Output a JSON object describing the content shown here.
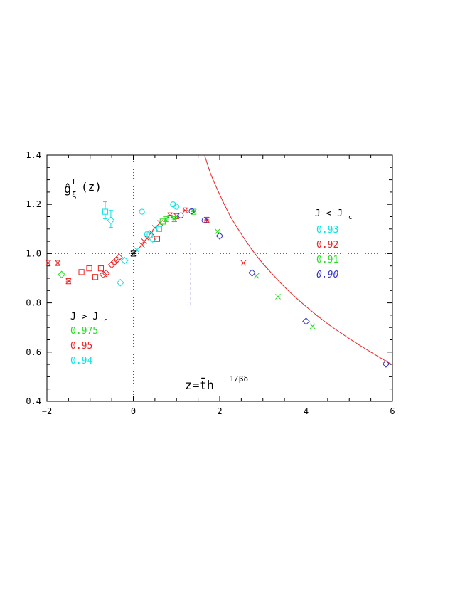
{
  "chart_data": {
    "type": "scatter",
    "title": "",
    "ylabel_main": "ĝ",
    "ylabel_sup": "L",
    "ylabel_sub": "ξ",
    "ylabel_args": "(z)",
    "xlabel_main": "z=t̄h",
    "xlabel_sup": "−1/βδ",
    "xlim": [
      -2,
      6
    ],
    "ylim": [
      0.4,
      1.4
    ],
    "x_ticks": [
      -2,
      0,
      2,
      4,
      6
    ],
    "x_tick_labels": [
      "−2",
      "0",
      "2",
      "4",
      "6"
    ],
    "y_ticks": [
      0.4,
      0.6,
      0.8,
      1.0,
      1.2,
      1.4
    ],
    "y_tick_labels": [
      "0.4",
      "0.6",
      "0.8",
      "1.0",
      "1.2",
      "1.4"
    ],
    "reference_lines": {
      "x": 0,
      "y": 1.0,
      "style": "dotted"
    },
    "dashed_marker": {
      "x": 1.33,
      "y_from": 0.79,
      "y_to": 1.05,
      "color": "#4444cc"
    },
    "colors": {
      "cyan": "#00e5e5",
      "red": "#ee2222",
      "green": "#22dd22",
      "blue": "#3333cc",
      "black": "#000000"
    },
    "legend_low": {
      "title_main": "J > J",
      "title_sub": "c",
      "entries": [
        {
          "label": "0.975",
          "color": "#22dd22"
        },
        {
          "label": "0.95",
          "color": "#ee2222"
        },
        {
          "label": "0.94",
          "color": "#00e5e5"
        }
      ]
    },
    "legend_high": {
      "title_main": "J < J",
      "title_sub": "c",
      "entries": [
        {
          "label": "0.93",
          "color": "#00e5e5"
        },
        {
          "label": "0.92",
          "color": "#ee2222"
        },
        {
          "label": "0.91",
          "color": "#22dd22"
        },
        {
          "label": "0.90",
          "color": "#3333cc"
        }
      ]
    },
    "curve": {
      "color": "#ee2222",
      "x_from": 1.65,
      "x_to": 6.0,
      "points": [
        [
          1.65,
          1.4
        ],
        [
          1.8,
          1.32
        ],
        [
          2.0,
          1.24
        ],
        [
          2.25,
          1.15
        ],
        [
          2.5,
          1.08
        ],
        [
          2.75,
          1.015
        ],
        [
          3.0,
          0.96
        ],
        [
          3.5,
          0.865
        ],
        [
          4.0,
          0.785
        ],
        [
          4.5,
          0.715
        ],
        [
          5.0,
          0.655
        ],
        [
          5.5,
          0.6
        ],
        [
          6.0,
          0.548
        ]
      ]
    },
    "series": [
      {
        "color": "#ee2222",
        "marker": "hourglass",
        "points": [
          [
            -1.97,
            0.962
          ],
          [
            -1.75,
            0.962
          ],
          [
            -1.5,
            0.888
          ],
          [
            0.85,
            1.155
          ],
          [
            1.0,
            1.152
          ],
          [
            1.2,
            1.175
          ],
          [
            1.7,
            1.137
          ]
        ]
      },
      {
        "color": "#22dd22",
        "marker": "hourglass",
        "points": [
          [
            0.75,
            1.14
          ],
          [
            0.95,
            1.14
          ],
          [
            1.4,
            1.17
          ]
        ]
      },
      {
        "color": "#ee2222",
        "marker": "square",
        "points": [
          [
            -1.2,
            0.925
          ],
          [
            -1.02,
            0.94
          ],
          [
            -0.88,
            0.905
          ],
          [
            -0.75,
            0.94
          ],
          [
            0.55,
            1.06
          ]
        ]
      },
      {
        "color": "#ee2222",
        "marker": "diamond",
        "points": [
          [
            -0.7,
            0.915
          ],
          [
            -0.63,
            0.92
          ],
          [
            -0.5,
            0.955
          ],
          [
            -0.44,
            0.965
          ],
          [
            -0.38,
            0.975
          ],
          [
            -0.33,
            0.985
          ]
        ]
      },
      {
        "color": "#ee2222",
        "marker": "cross",
        "points": [
          [
            0.2,
            1.035
          ],
          [
            0.25,
            1.05
          ],
          [
            0.32,
            1.062
          ],
          [
            0.42,
            1.085
          ],
          [
            0.5,
            1.105
          ],
          [
            0.62,
            1.125
          ],
          [
            2.55,
            0.962
          ]
        ]
      },
      {
        "color": "#22dd22",
        "marker": "diamond",
        "points": [
          [
            -1.66,
            0.915
          ]
        ]
      },
      {
        "color": "#22dd22",
        "marker": "square",
        "points": [
          [
            0.68,
            1.13
          ]
        ]
      },
      {
        "color": "#22dd22",
        "marker": "cross",
        "points": [
          [
            1.95,
            1.09
          ],
          [
            2.85,
            0.91
          ],
          [
            3.35,
            0.825
          ],
          [
            4.15,
            0.705
          ]
        ]
      },
      {
        "color": "#00e5e5",
        "marker": "diamond",
        "points": [
          [
            -0.3,
            0.882
          ],
          [
            -0.2,
            0.972
          ],
          [
            0.45,
            1.06
          ]
        ]
      },
      {
        "color": "#00e5e5",
        "marker": "circle",
        "points": [
          [
            0.2,
            1.17
          ],
          [
            0.32,
            1.08
          ],
          [
            0.92,
            1.2
          ],
          [
            1.0,
            1.19
          ]
        ]
      },
      {
        "color": "#00e5e5",
        "marker": "square",
        "points": [
          [
            0.38,
            1.075
          ],
          [
            0.6,
            1.1
          ]
        ]
      },
      {
        "color": "#00e5e5",
        "marker": "square_err",
        "points": [
          [
            -0.65,
            1.17
          ]
        ]
      },
      {
        "color": "#00e5e5",
        "marker": "diamond_err",
        "points": [
          [
            -0.52,
            1.135
          ]
        ]
      },
      {
        "color": "#00e5e5",
        "marker": "cross",
        "points": [
          [
            0.08,
            1.015
          ]
        ]
      },
      {
        "color": "#3333cc",
        "marker": "circle",
        "points": [
          [
            1.1,
            1.155
          ],
          [
            1.35,
            1.172
          ],
          [
            1.65,
            1.135
          ]
        ]
      },
      {
        "color": "#3333cc",
        "marker": "diamond",
        "points": [
          [
            2.0,
            1.072
          ],
          [
            2.75,
            0.922
          ],
          [
            4.0,
            0.725
          ],
          [
            5.85,
            0.552
          ]
        ]
      },
      {
        "color": "#000000",
        "marker": "hourglass",
        "points": [
          [
            0.0,
            1.0
          ]
        ]
      }
    ]
  }
}
